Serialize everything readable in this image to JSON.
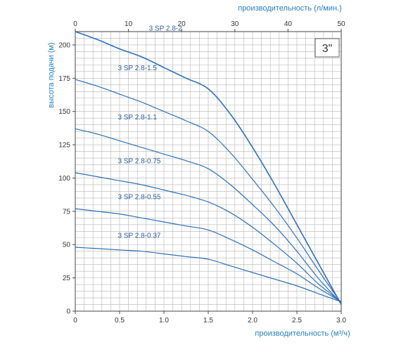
{
  "chart_data": {
    "type": "line",
    "badge": "3\"",
    "top_axis": {
      "label": "производительность (л/мин.)",
      "ticks": [
        0,
        10,
        20,
        30,
        40,
        50
      ],
      "lim": [
        0,
        50
      ]
    },
    "x_axis": {
      "label": "производительность (м³/ч)",
      "ticks": [
        "0",
        "0.5",
        "1.0",
        "1.5",
        "2.0",
        "2.5",
        "3.0"
      ],
      "lim": [
        0,
        3.0
      ]
    },
    "y_axis": {
      "label": "высота подачи (м)",
      "ticks": [
        "0",
        "25",
        "50",
        "75",
        "100",
        "125",
        "150",
        "175",
        "200"
      ],
      "lim": [
        0,
        210
      ]
    },
    "grid": true,
    "series": [
      {
        "name": "3 SP 2.8-2",
        "x": [
          0,
          0.25,
          0.5,
          0.75,
          1.0,
          1.25,
          1.5,
          1.75,
          2.0,
          2.25,
          2.5,
          2.75,
          3.0
        ],
        "y": [
          210,
          204,
          197,
          191,
          183,
          175,
          167,
          148,
          123,
          95,
          65,
          35,
          5
        ]
      },
      {
        "name": "3 SP 2.8-1.5",
        "x": [
          0,
          0.25,
          0.5,
          0.75,
          1.0,
          1.25,
          1.5,
          1.75,
          2.0,
          2.25,
          2.5,
          2.75,
          3.0
        ],
        "y": [
          174,
          169,
          163,
          157,
          150,
          143,
          135,
          119,
          99,
          78,
          55,
          30,
          6
        ]
      },
      {
        "name": "3 SP 2.8-1.1",
        "x": [
          0,
          0.25,
          0.5,
          0.75,
          1.0,
          1.25,
          1.5,
          1.75,
          2.0,
          2.25,
          2.5,
          2.75,
          3.0
        ],
        "y": [
          137,
          133,
          128,
          123,
          118,
          113,
          107,
          95,
          80,
          64,
          45,
          24,
          6
        ]
      },
      {
        "name": "3 SP 2.8-0.75",
        "x": [
          0,
          0.25,
          0.5,
          0.75,
          1.0,
          1.25,
          1.5,
          1.75,
          2.0,
          2.25,
          2.5,
          2.75,
          3.0
        ],
        "y": [
          104,
          101,
          98,
          95,
          91,
          87,
          82,
          74,
          63,
          50,
          36,
          20,
          7
        ]
      },
      {
        "name": "3 SP 2.8-0.55",
        "x": [
          0,
          0.25,
          0.5,
          0.75,
          1.0,
          1.25,
          1.5,
          1.75,
          2.0,
          2.25,
          2.5,
          2.75,
          3.0
        ],
        "y": [
          77,
          75,
          73,
          70,
          67,
          64,
          61,
          54,
          46,
          37,
          28,
          17,
          7
        ]
      },
      {
        "name": "3 SP 2.8-0.37",
        "x": [
          0,
          0.25,
          0.5,
          0.75,
          1.0,
          1.25,
          1.5,
          1.75,
          2.0,
          2.25,
          2.5,
          2.75,
          3.0
        ],
        "y": [
          48,
          47,
          46,
          45,
          43,
          41,
          39,
          34,
          29,
          24,
          19,
          13,
          7
        ]
      }
    ],
    "colors": {
      "curve": "#2f6fb3",
      "grid": "#b5b5b5",
      "axis_title": "#2a7fc1",
      "frame": "#444444"
    }
  }
}
